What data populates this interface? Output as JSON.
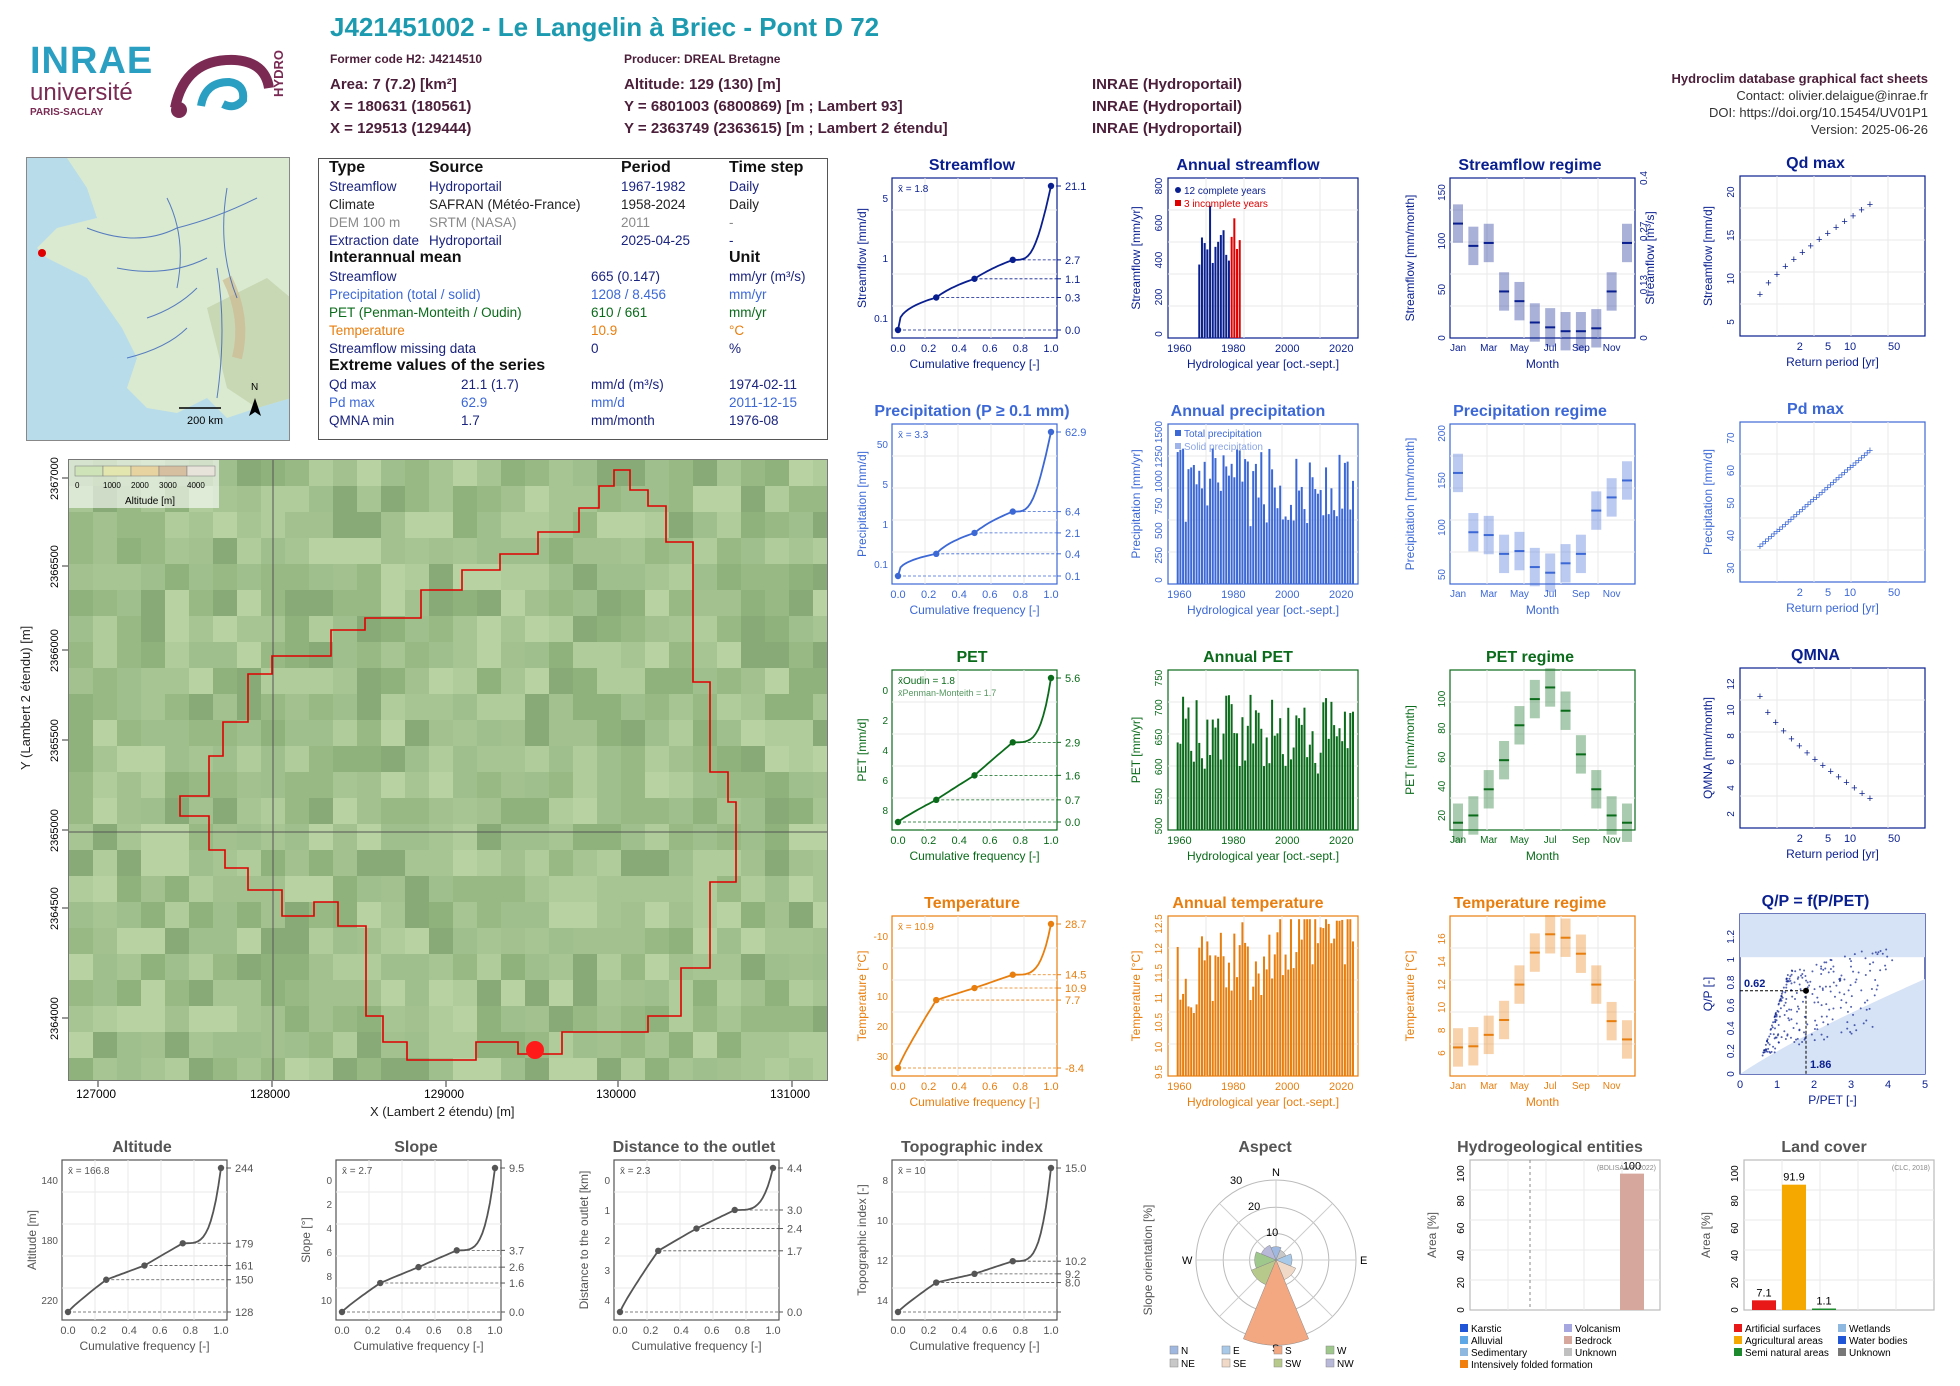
{
  "header": {
    "title": "J421451002 - Le Langelin à Briec - Pont D 72",
    "former_code": "Former code H2: J4214510",
    "producer": "Producer: DREAL Bretagne",
    "area": "Area: 7 (7.2) [km²]",
    "x93": "X = 180631 (180561)",
    "x2e": "X = 129513 (129444)",
    "altitude": "Altitude: 129 (130) [m]",
    "y93": "Y = 6801003 (6800869) [m ; Lambert 93]",
    "y2e": "Y = 2363749 (2363615) [m ; Lambert 2 étendu]",
    "src1": "INRAE (Hydroportail)",
    "src2": "INRAE (Hydroportail)",
    "src3": "INRAE (Hydroportail)",
    "db_title": "Hydroclim database graphical fact sheets",
    "contact": "Contact: olivier.delaigue@inrae.fr",
    "doi": "DOI: https://doi.org/10.15454/UV01P1",
    "version": "Version: 2025-06-26"
  },
  "logos": {
    "inrae": "INRAE",
    "universite": "université",
    "paris": "PARIS-SACLAY",
    "hydro": "HYDRO"
  },
  "minimap": {
    "scale": "200 km",
    "north": "N"
  },
  "info_table": {
    "headers": [
      "Type",
      "Source",
      "Period",
      "Time step"
    ],
    "rows": [
      [
        "Streamflow",
        "Hydroportail",
        "1967-1982",
        "Daily"
      ],
      [
        "Climate",
        "SAFRAN (Météo-France)",
        "1958-2024",
        "Daily"
      ],
      [
        "DEM 100 m",
        "SRTM (NASA)",
        "2011",
        "-"
      ],
      [
        "Extraction date",
        "Hydroportail",
        "2025-04-25",
        "-"
      ]
    ],
    "interannual_title": "Interannual mean",
    "unit_title": "Unit",
    "interannual": [
      [
        "Streamflow",
        "665 (0.147)",
        "mm/yr (m³/s)"
      ],
      [
        "Precipitation (total / solid)",
        "1208 / 8.456",
        "mm/yr"
      ],
      [
        "PET (Penman-Monteith / Oudin)",
        "610 / 661",
        "mm/yr"
      ],
      [
        "Temperature",
        "10.9",
        "°C"
      ],
      [
        "Streamflow missing data",
        "0",
        "%"
      ]
    ],
    "extreme_title": "Extreme values of the series",
    "extremes": [
      [
        "Qd max",
        "21.1 (1.7)",
        "mm/d (m³/s)",
        "1974-02-11"
      ],
      [
        "Pd max",
        "62.9",
        "mm/d",
        "2011-12-15"
      ],
      [
        "QMNA min",
        "1.7",
        "mm/month",
        "1976-08"
      ]
    ]
  },
  "bigmap": {
    "xlabel": "X (Lambert 2 étendu) [m]",
    "ylabel": "Y (Lambert 2 étendu) [m]",
    "xticks": [
      "127000",
      "128000",
      "129000",
      "130000",
      "131000"
    ],
    "yticks": [
      "2364000",
      "2364500",
      "2365000",
      "2365500",
      "2366000",
      "2366500",
      "2367000"
    ],
    "legend_ticks": [
      "0",
      "1000",
      "2000",
      "3000",
      "4000"
    ],
    "legend_label": "Altitude [m]"
  },
  "colors": {
    "streamflow": "#0a1f8f",
    "precip": "#3c68d6",
    "pet": "#0a6b1a",
    "temp": "#e87e0e",
    "basin": "#e00000",
    "grey": "#555555"
  },
  "chart_data": [
    {
      "id": "streamflow_cdf",
      "type": "line",
      "title": "Streamflow",
      "ylabel": "Streamflow [mm/d]",
      "xlabel": "Cumulative frequency [-]",
      "mean_label": "x̄ = 1.8",
      "x": [
        0,
        0.25,
        0.5,
        0.75,
        1.0
      ],
      "y": [
        0.0,
        0.3,
        1.1,
        2.7,
        21.1
      ],
      "right_ticks": [
        "21.1",
        "2.7",
        "1.1",
        "0.3",
        "0.0"
      ],
      "left_ticks": [
        "5",
        "1",
        "0.1"
      ]
    },
    {
      "id": "annual_streamflow",
      "type": "bar",
      "title": "Annual streamflow",
      "ylabel": "Streamflow [mm/yr]",
      "xlabel": "Hydrological year [oct.-sept.]",
      "legend": [
        "12 complete years",
        "3 incomplete years"
      ],
      "xticks": [
        "1960",
        "1980",
        "2000",
        "2020"
      ],
      "yticks": [
        "0",
        "200",
        "400",
        "600",
        "800"
      ]
    },
    {
      "id": "streamflow_regime",
      "type": "bar",
      "title": "Streamflow regime",
      "ylabel": "Streamflow [mm/month]",
      "ylabel2": "Streamflow [m³/s]",
      "xlabel": "Month",
      "categories": [
        "Jan",
        "Feb",
        "Mar",
        "Apr",
        "May",
        "Jun",
        "Jul",
        "Aug",
        "Sep",
        "Oct",
        "Nov",
        "Dec"
      ],
      "values": [
        118,
        95,
        98,
        48,
        38,
        16,
        11,
        7,
        7,
        10,
        48,
        98
      ],
      "yticks": [
        "0",
        "50",
        "100",
        "150"
      ],
      "yticks2": [
        "0",
        "0.13",
        "0.27",
        "0.4"
      ]
    },
    {
      "id": "qd_max",
      "type": "scatter",
      "title": "Qd max",
      "ylabel": "Streamflow [mm/d]",
      "xlabel": "Return period [yr]",
      "xticks": [
        "2",
        "5",
        "10",
        "20",
        "50"
      ],
      "yticks": [
        "5",
        "10",
        "15",
        "20"
      ]
    },
    {
      "id": "precip_cdf",
      "type": "line",
      "title": "Precipitation (P ≥ 0.1 mm)",
      "ylabel": "Precipitation [mm/d]",
      "xlabel": "Cumulative frequency [-]",
      "mean_label": "x̄ = 3.3",
      "x": [
        0,
        0.25,
        0.5,
        0.75,
        1.0
      ],
      "y": [
        0.1,
        0.4,
        2.1,
        6.4,
        62.9
      ],
      "right_ticks": [
        "62.9",
        "6.4",
        "2.1",
        "0.4",
        "0.1"
      ],
      "left_ticks": [
        "50",
        "5",
        "1",
        "0.1"
      ]
    },
    {
      "id": "annual_precip",
      "type": "bar",
      "title": "Annual precipitation",
      "ylabel": "Precipitation [mm/yr]",
      "xlabel": "Hydrological year [oct.-sept.]",
      "legend": [
        "Total precipitation",
        "Solid precipitation"
      ],
      "xticks": [
        "1960",
        "1980",
        "2000",
        "2020"
      ],
      "yticks": [
        "0",
        "250",
        "500",
        "750",
        "1000",
        "1250",
        "1500"
      ]
    },
    {
      "id": "precip_regime",
      "type": "bar",
      "title": "Precipitation regime",
      "ylabel": "Precipitation [mm/month]",
      "xlabel": "Month",
      "categories": [
        "Jan",
        "Feb",
        "Mar",
        "Apr",
        "May",
        "Jun",
        "Jul",
        "Aug",
        "Sep",
        "Oct",
        "Nov",
        "Dec"
      ],
      "values": [
        158,
        95,
        92,
        72,
        75,
        58,
        52,
        62,
        72,
        118,
        132,
        150
      ],
      "yticks": [
        "50",
        "100",
        "150",
        "200"
      ]
    },
    {
      "id": "pd_max",
      "type": "scatter",
      "title": "Pd max",
      "ylabel": "Precipitation [mm/d]",
      "xlabel": "Return period [yr]",
      "xticks": [
        "2",
        "5",
        "10",
        "20",
        "50"
      ],
      "yticks": [
        "30",
        "40",
        "50",
        "60",
        "70"
      ]
    },
    {
      "id": "pet_cdf",
      "type": "line",
      "title": "PET",
      "ylabel": "PET [mm/d]",
      "xlabel": "Cumulative frequency [-]",
      "mean_label": "x̄Oudin = 1.8",
      "mean_label2": "x̄Penman-Monteith = 1.7",
      "x": [
        0,
        0.25,
        0.5,
        0.75,
        1.0
      ],
      "y": [
        0.0,
        0.7,
        1.6,
        2.9,
        5.6
      ],
      "right_ticks": [
        "5.6",
        "2.9",
        "1.6",
        "0.7",
        "0.0"
      ],
      "left_ticks": [
        "0",
        "2",
        "4",
        "6",
        "8"
      ]
    },
    {
      "id": "annual_pet",
      "type": "bar",
      "title": "Annual PET",
      "ylabel": "PET [mm/yr]",
      "xlabel": "Hydrological year [oct.-sept.]",
      "xticks": [
        "1960",
        "1980",
        "2000",
        "2020"
      ],
      "yticks": [
        "500",
        "550",
        "600",
        "650",
        "700",
        "750"
      ]
    },
    {
      "id": "pet_regime",
      "type": "bar",
      "title": "PET regime",
      "ylabel": "PET [mm/month]",
      "xlabel": "Month",
      "categories": [
        "Jan",
        "Feb",
        "Mar",
        "Apr",
        "May",
        "Jun",
        "Jul",
        "Aug",
        "Sep",
        "Oct",
        "Nov",
        "Dec"
      ],
      "values": [
        15,
        20,
        38,
        58,
        82,
        100,
        108,
        92,
        62,
        38,
        20,
        15
      ],
      "yticks": [
        "20",
        "40",
        "60",
        "80",
        "100"
      ]
    },
    {
      "id": "qmna",
      "type": "scatter",
      "title": "QMNA",
      "ylabel": "QMNA [mm/month]",
      "xlabel": "Return period [yr]",
      "xticks": [
        "2",
        "5",
        "10",
        "20",
        "50"
      ],
      "yticks": [
        "2",
        "4",
        "6",
        "8",
        "10",
        "12"
      ]
    },
    {
      "id": "temp_cdf",
      "type": "line",
      "title": "Temperature",
      "ylabel": "Temperature [°C]",
      "xlabel": "Cumulative frequency [-]",
      "mean_label": "x̄ = 10.9",
      "x": [
        0,
        0.25,
        0.5,
        0.75,
        1.0
      ],
      "y": [
        -8.4,
        7.7,
        10.9,
        14.5,
        28.7
      ],
      "right_ticks": [
        "28.7",
        "14.5",
        "10.9",
        "7.7",
        "-8.4"
      ],
      "left_ticks": [
        "-10",
        "0",
        "10",
        "20",
        "30"
      ]
    },
    {
      "id": "annual_temp",
      "type": "bar",
      "title": "Annual temperature",
      "ylabel": "Temperature [°C]",
      "xlabel": "Hydrological year [oct.-sept.]",
      "xticks": [
        "1960",
        "1980",
        "2000",
        "2020"
      ],
      "yticks": [
        "9.5",
        "10",
        "10.5",
        "11",
        "11.5",
        "12",
        "12.5"
      ]
    },
    {
      "id": "temp_regime",
      "type": "bar",
      "title": "Temperature regime",
      "ylabel": "Temperature [°C]",
      "xlabel": "Month",
      "categories": [
        "Jan",
        "Feb",
        "Mar",
        "Apr",
        "May",
        "Jun",
        "Jul",
        "Aug",
        "Sep",
        "Oct",
        "Nov",
        "Dec"
      ],
      "values": [
        6.5,
        6.6,
        7.6,
        8.9,
        12.0,
        14.8,
        16.4,
        16.1,
        14.7,
        12.0,
        8.8,
        7.2
      ],
      "yticks": [
        "6",
        "8",
        "10",
        "12",
        "14",
        "16"
      ]
    },
    {
      "id": "qp_ppet",
      "type": "scatter",
      "title": "Q/P = f(P/PET)",
      "ylabel": "Q/P [-]",
      "xlabel": "P/PET [-]",
      "annot_y": "0.62",
      "annot_x": "1.86",
      "xticks": [
        "0",
        "1",
        "2",
        "3",
        "4",
        "5"
      ],
      "yticks": [
        "0",
        "0.2",
        "0.4",
        "0.6",
        "0.8",
        "1",
        "1.2"
      ]
    },
    {
      "id": "alt_cdf",
      "type": "line",
      "title": "Altitude",
      "ylabel": "Altitude [m]",
      "xlabel": "Cumulative frequency [-]",
      "mean_label": "x̄ = 166.8",
      "x": [
        0,
        0.25,
        0.5,
        0.75,
        1.0
      ],
      "y": [
        128,
        150,
        161,
        179,
        244
      ],
      "right_ticks": [
        "244",
        "179",
        "161",
        "150",
        "128"
      ],
      "left_ticks": [
        "140",
        "180",
        "220"
      ]
    },
    {
      "id": "slope_cdf",
      "type": "line",
      "title": "Slope",
      "ylabel": "Slope [°]",
      "xlabel": "Cumulative frequency [-]",
      "mean_label": "x̄ = 2.7",
      "x": [
        0,
        0.25,
        0.5,
        0.75,
        1.0
      ],
      "y": [
        0.0,
        1.6,
        2.6,
        3.7,
        9.5
      ],
      "right_ticks": [
        "9.5",
        "3.7",
        "2.6",
        "1.6",
        "0.0"
      ],
      "left_ticks": [
        "0",
        "2",
        "4",
        "6",
        "8",
        "10"
      ]
    },
    {
      "id": "dist_cdf",
      "type": "line",
      "title": "Distance to the outlet",
      "ylabel": "Distance to the outlet [km]",
      "xlabel": "Cumulative frequency [-]",
      "mean_label": "x̄ = 2.3",
      "x": [
        0,
        0.25,
        0.5,
        0.75,
        1.0
      ],
      "y": [
        0.0,
        1.7,
        2.4,
        3.0,
        4.4
      ],
      "right_ticks": [
        "4.4",
        "3.0",
        "2.4",
        "1.7",
        "0.0"
      ],
      "left_ticks": [
        "0",
        "1",
        "2",
        "3",
        "4"
      ]
    },
    {
      "id": "topo_cdf",
      "type": "line",
      "title": "Topographic index",
      "ylabel": "Topographic index [-]",
      "xlabel": "Cumulative frequency [-]",
      "mean_label": "x̄ = 10",
      "x": [
        0,
        0.25,
        0.5,
        0.75,
        1.0
      ],
      "y": [
        8.0,
        9.2,
        9.6,
        10.2,
        15.0
      ],
      "right_ticks": [
        "15.0",
        "10.2",
        "9.2",
        "8.0"
      ],
      "left_ticks": [
        "8",
        "10",
        "12",
        "14"
      ]
    },
    {
      "id": "aspect",
      "type": "pie",
      "title": "Aspect",
      "ylabel": "Slope orientation [%]",
      "categories": [
        "N",
        "NE",
        "E",
        "SE",
        "S",
        "SW",
        "W",
        "NW"
      ],
      "values": [
        5,
        4,
        6,
        8,
        32,
        10,
        8,
        6
      ],
      "ring_labels": [
        "10",
        "20",
        "30"
      ],
      "legend": [
        "N",
        "E",
        "S",
        "W",
        "NE",
        "SE",
        "SW",
        "NW"
      ]
    },
    {
      "id": "hydrogeo",
      "type": "bar",
      "title": "Hydrogeological entities",
      "ylabel": "Area [%]",
      "note": "(BDLISA V3, 2022)",
      "categories": [
        "Bedrock"
      ],
      "values": [
        100
      ],
      "value_labels": [
        "100"
      ],
      "yticks": [
        "0",
        "20",
        "40",
        "60",
        "80",
        "100"
      ],
      "legend": [
        "Karstic",
        "Volcanism",
        "Alluvial",
        "Bedrock",
        "Sedimentary",
        "Unknown",
        "Intensively folded formation"
      ]
    },
    {
      "id": "landcover",
      "type": "bar",
      "title": "Land cover",
      "ylabel": "Area [%]",
      "note": "(CLC, 2018)",
      "categories": [
        "Artificial surfaces",
        "Agricultural areas",
        "Semi natural areas"
      ],
      "values": [
        7.1,
        91.9,
        1.1
      ],
      "value_labels": [
        "7.1",
        "91.9",
        "1.1"
      ],
      "yticks": [
        "0",
        "20",
        "40",
        "60",
        "80",
        "100"
      ],
      "legend": [
        "Artificial surfaces",
        "Wetlands",
        "Agricultural areas",
        "Water bodies",
        "Semi natural areas",
        "Unknown"
      ]
    }
  ]
}
